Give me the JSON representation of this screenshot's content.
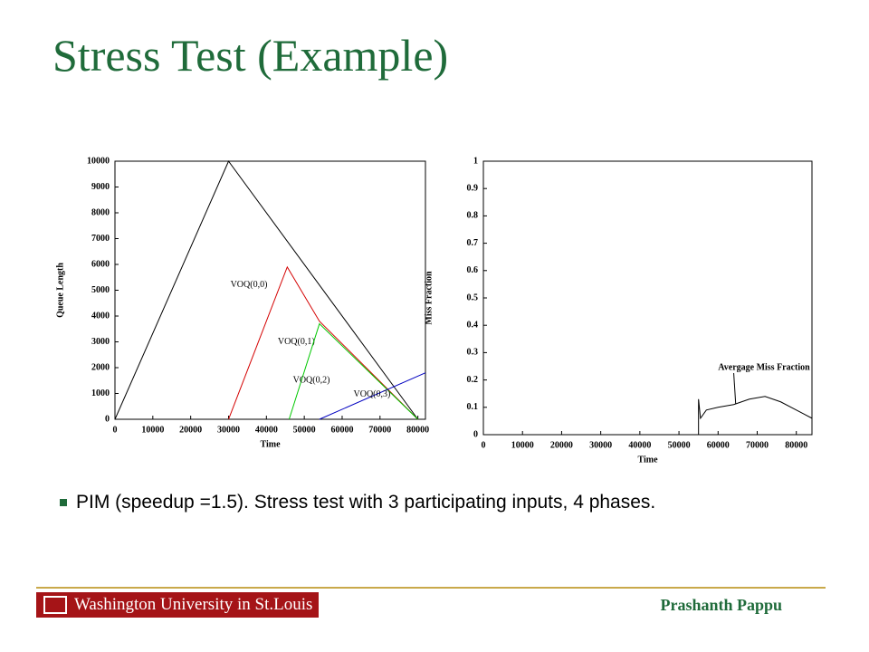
{
  "header": {
    "title": "Stress Test (Example)"
  },
  "bullet": "PIM (speedup =1.5). Stress test with 3 participating inputs, 4 phases.",
  "footer": {
    "institution": "Washington University in St.Louis",
    "author": "Prashanth Pappu"
  },
  "chart_data": [
    {
      "type": "line",
      "x_label": "Time",
      "y_label": "Queue Length",
      "xlim": [
        0,
        82000
      ],
      "xticks": [
        0,
        10000,
        20000,
        30000,
        40000,
        50000,
        60000,
        70000,
        80000
      ],
      "ylim": [
        0,
        10000
      ],
      "yticks": [
        0,
        1000,
        2000,
        3000,
        4000,
        5000,
        6000,
        7000,
        8000,
        9000,
        10000
      ],
      "series": [
        {
          "name": "VOQ(0,0)",
          "color": "#000000",
          "x": [
            0,
            30000,
            80000
          ],
          "values": [
            0,
            10000,
            0
          ]
        },
        {
          "name": "VOQ(0,1)",
          "color": "#d40000",
          "x": [
            30000,
            45500,
            54000,
            80000
          ],
          "values": [
            0,
            5900,
            3800,
            0
          ]
        },
        {
          "name": "VOQ(0,2)",
          "color": "#00c800",
          "x": [
            46000,
            54000,
            80000
          ],
          "values": [
            0,
            3700,
            0
          ]
        },
        {
          "name": "VOQ(0,3)",
          "color": "#0000c0",
          "x": [
            54000,
            82000
          ],
          "values": [
            0,
            1800
          ]
        }
      ]
    },
    {
      "type": "line",
      "x_label": "Time",
      "y_label": "Miss Fraction",
      "annotation": "Avergage Miss Fraction",
      "xlim": [
        0,
        84000
      ],
      "xticks": [
        0,
        10000,
        20000,
        30000,
        40000,
        50000,
        60000,
        70000,
        80000
      ],
      "ylim": [
        0,
        1
      ],
      "yticks": [
        0,
        0.1,
        0.2,
        0.3,
        0.4,
        0.5,
        0.6,
        0.7,
        0.8,
        0.9,
        1
      ],
      "series": [
        {
          "color": "#000000",
          "x": [
            55000,
            55000,
            55500,
            57000,
            60000,
            64000,
            68000,
            72000,
            76000,
            80000,
            84000
          ],
          "values": [
            0,
            0.13,
            0.06,
            0.09,
            0.1,
            0.11,
            0.13,
            0.14,
            0.12,
            0.09,
            0.06
          ]
        }
      ]
    }
  ]
}
